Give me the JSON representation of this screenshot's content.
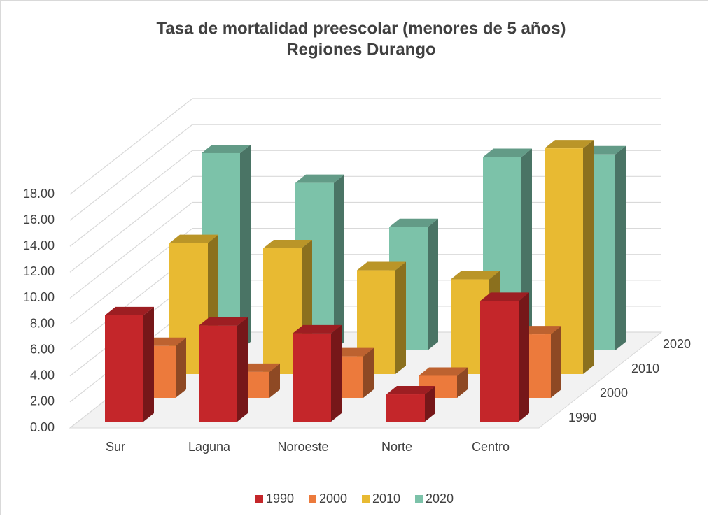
{
  "chart_data": {
    "type": "bar3d",
    "title": [
      "Tasa de mortalidad preescolar (menores de 5 años)",
      "Regiones Durango"
    ],
    "categories": [
      "Sur",
      "Laguna",
      "Noroeste",
      "Norte",
      "Centro"
    ],
    "series": [
      {
        "name": "1990",
        "color": "#c4262a",
        "values": [
          8.2,
          7.4,
          6.8,
          2.1,
          9.3
        ]
      },
      {
        "name": "2000",
        "color": "#ec7a3c",
        "values": [
          4.0,
          2.0,
          3.2,
          1.7,
          4.9
        ]
      },
      {
        "name": "2010",
        "color": "#e8ba32",
        "values": [
          10.1,
          9.7,
          8.0,
          7.3,
          17.4
        ]
      },
      {
        "name": "2020",
        "color": "#7cc2a9",
        "values": [
          15.2,
          12.9,
          9.5,
          14.9,
          15.1
        ]
      }
    ],
    "ylim": [
      0,
      18
    ],
    "yticks": [
      {
        "value": 0,
        "label": "0.00"
      },
      {
        "value": 2,
        "label": "2.00"
      },
      {
        "value": 4,
        "label": "4.00"
      },
      {
        "value": 6,
        "label": "6.00"
      },
      {
        "value": 8,
        "label": "8.00"
      },
      {
        "value": 10,
        "label": "10.00"
      },
      {
        "value": 12,
        "label": "12.00"
      },
      {
        "value": 14,
        "label": "14.00"
      },
      {
        "value": 16,
        "label": "16.00"
      },
      {
        "value": 18,
        "label": "18.00"
      }
    ],
    "grid": true,
    "legend": "bottom"
  }
}
